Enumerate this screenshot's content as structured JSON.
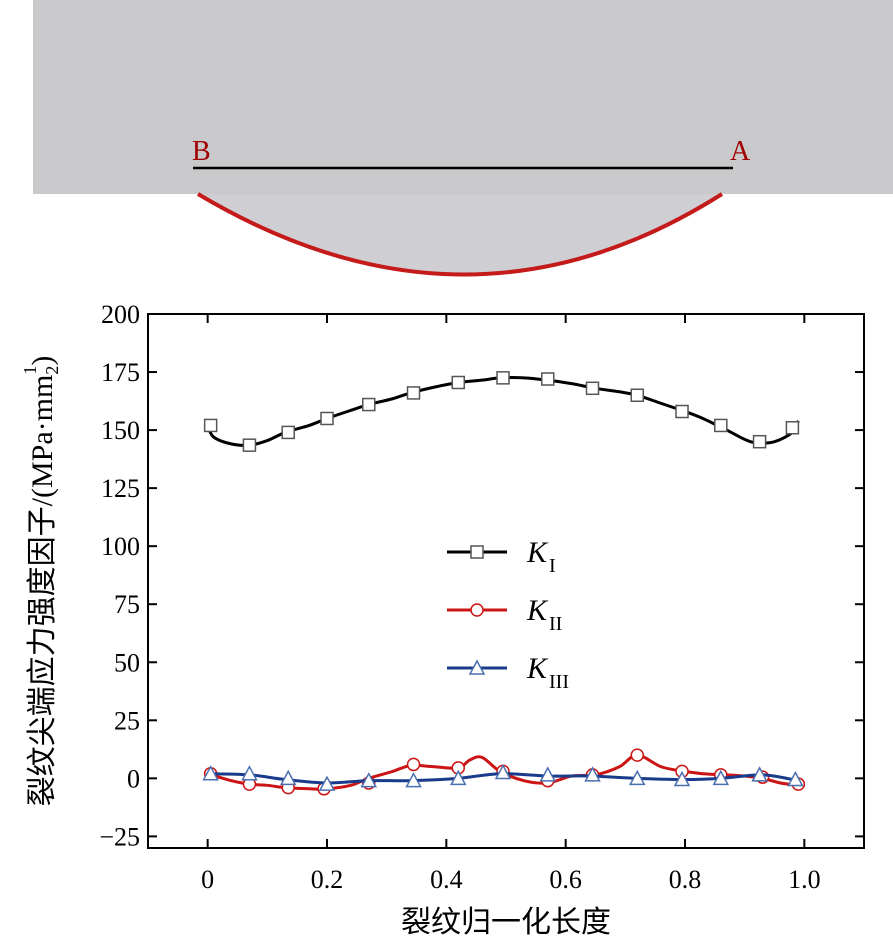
{
  "diagram": {
    "point_b": "B",
    "point_a": "A"
  },
  "chart_data": {
    "type": "line",
    "xlabel": "裂纹归一化长度",
    "ylabel": "裂纹尖端应力强度因子/",
    "ylabel_unit": "(MPa·mm",
    "ylabel_exp_num": "1",
    "ylabel_exp_den": "2",
    "ylabel_close": ")",
    "xlim": [
      -0.1,
      1.1
    ],
    "ylim": [
      -30,
      200
    ],
    "xticks": [
      0,
      0.2,
      0.4,
      0.6,
      0.8,
      1.0
    ],
    "xtick_labels": [
      "0",
      "0.2",
      "0.4",
      "0.6",
      "0.8",
      "1.0"
    ],
    "yticks": [
      -25,
      0,
      25,
      50,
      75,
      100,
      125,
      150,
      175,
      200
    ],
    "ytick_labels": [
      "−25",
      "0",
      "25",
      "50",
      "75",
      "100",
      "125",
      "150",
      "175",
      "200"
    ],
    "grid": false,
    "legend_position": "center-left",
    "series": [
      {
        "name": "K",
        "subscript": "I",
        "color": "#000000",
        "marker": "square",
        "x": [
          0.0,
          0.01,
          0.04,
          0.07,
          0.1,
          0.13,
          0.17,
          0.2,
          0.24,
          0.27,
          0.31,
          0.34,
          0.38,
          0.42,
          0.46,
          0.49,
          0.53,
          0.57,
          0.61,
          0.65,
          0.69,
          0.72,
          0.76,
          0.8,
          0.83,
          0.87,
          0.9,
          0.92,
          0.95,
          0.98,
          0.99
        ],
        "y": [
          152,
          147,
          144,
          143.5,
          145.5,
          149,
          152,
          155,
          158.5,
          161,
          163.5,
          166,
          168.5,
          170.5,
          171.5,
          172.5,
          172.5,
          171.5,
          170,
          168,
          166.5,
          165,
          161.5,
          158,
          155,
          150,
          146,
          144.5,
          145,
          149,
          154
        ],
        "marker_x": [
          0.005,
          0.07,
          0.135,
          0.2,
          0.27,
          0.345,
          0.42,
          0.495,
          0.57,
          0.645,
          0.72,
          0.795,
          0.86,
          0.925,
          0.98
        ],
        "marker_y": [
          152,
          143.5,
          149,
          155,
          161,
          166,
          170.5,
          172.5,
          172,
          168,
          165,
          158,
          152,
          145,
          151
        ]
      },
      {
        "name": "K",
        "subscript": "II",
        "color": "#cc1414",
        "marker": "circle",
        "x": [
          0.0,
          0.04,
          0.07,
          0.1,
          0.13,
          0.17,
          0.2,
          0.24,
          0.27,
          0.31,
          0.34,
          0.38,
          0.42,
          0.44,
          0.46,
          0.49,
          0.53,
          0.57,
          0.61,
          0.65,
          0.69,
          0.72,
          0.76,
          0.8,
          0.83,
          0.87,
          0.9,
          0.93,
          0.96,
          0.99
        ],
        "y": [
          2,
          -1,
          -2.5,
          -3,
          -4,
          -4.5,
          -4.5,
          -3,
          0,
          3,
          5.5,
          5,
          4.5,
          8,
          9,
          3,
          -1,
          -2,
          1,
          1.5,
          5,
          10,
          5,
          3,
          2,
          1.5,
          1,
          0,
          -2,
          -3
        ],
        "marker_x": [
          0.005,
          0.07,
          0.135,
          0.195,
          0.27,
          0.345,
          0.42,
          0.495,
          0.57,
          0.645,
          0.72,
          0.795,
          0.86,
          0.93,
          0.99
        ],
        "marker_y": [
          2,
          -2.5,
          -4,
          -4.5,
          -2,
          6,
          4.5,
          3,
          -1,
          1.5,
          10,
          3,
          1.5,
          0.5,
          -2.5
        ]
      },
      {
        "name": "K",
        "subscript": "III",
        "color": "#1a3b8c",
        "marker": "triangle",
        "x": [
          0.0,
          0.07,
          0.13,
          0.2,
          0.27,
          0.34,
          0.42,
          0.49,
          0.57,
          0.64,
          0.72,
          0.8,
          0.86,
          0.93,
          0.99
        ],
        "y": [
          2,
          1.5,
          -0.5,
          -2,
          -1,
          -1,
          0,
          2,
          1,
          1,
          0,
          -0.5,
          0,
          1.5,
          -1
        ],
        "marker_x": [
          0.005,
          0.07,
          0.135,
          0.2,
          0.27,
          0.345,
          0.42,
          0.495,
          0.57,
          0.645,
          0.72,
          0.795,
          0.86,
          0.925,
          0.985
        ],
        "marker_y": [
          2,
          2,
          0,
          -2.5,
          -1,
          -1,
          0,
          2.5,
          1.5,
          1.5,
          0,
          -0.5,
          0,
          1.5,
          -0.5
        ]
      }
    ]
  }
}
